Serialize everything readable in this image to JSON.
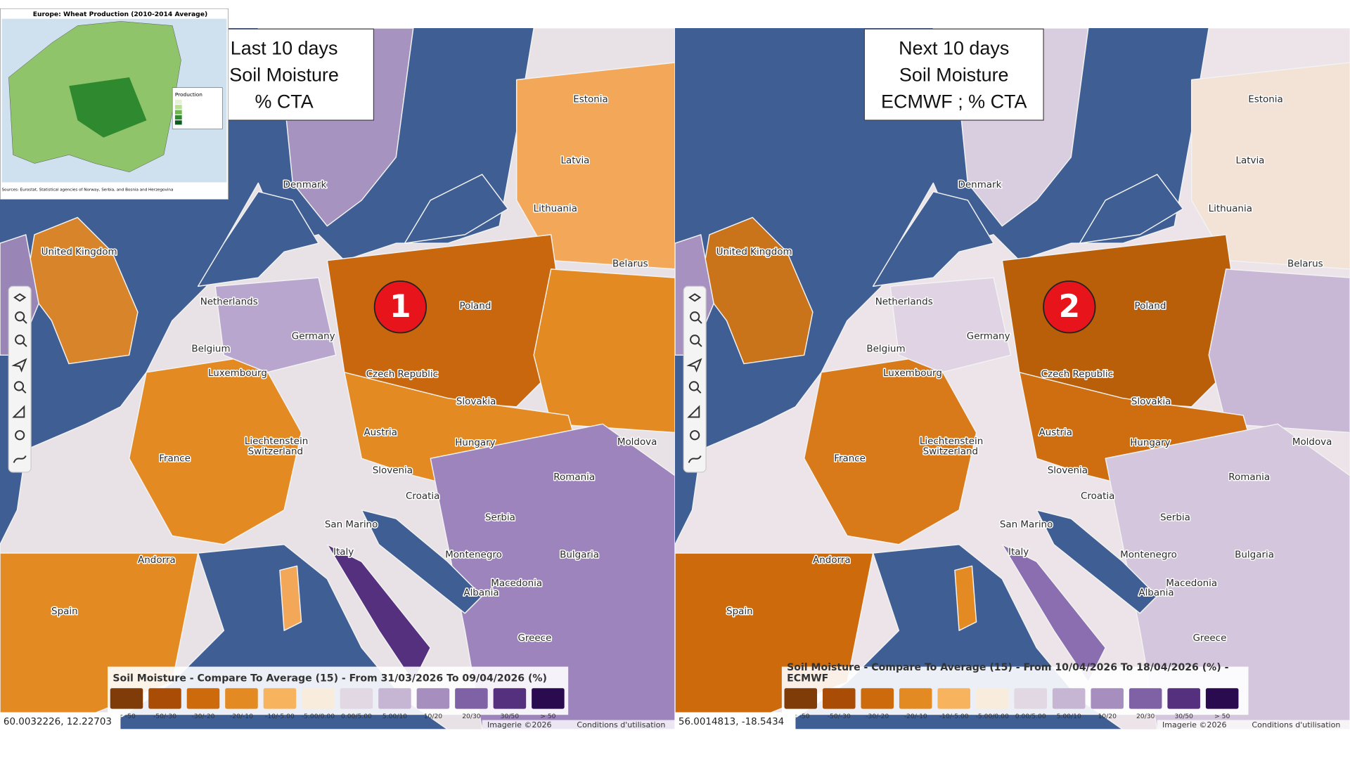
{
  "inset": {
    "title": "Europe: Wheat Production (2010-2014 Average)",
    "legend_title": "Production",
    "sources": "Sources: Eurostat, Statistical agencies of Norway, Serbia, and Bosnia and Herzegovina"
  },
  "countries": [
    "Estonia",
    "Latvia",
    "Denmark",
    "Lithuania",
    "United Kingdom",
    "Belarus",
    "Netherlands",
    "Poland",
    "Germany",
    "Belgium",
    "Luxembourg",
    "Czech Republic",
    "Slovakia",
    "Austria",
    "Liechtenstein",
    "Switzerland",
    "Moldova",
    "Hungary",
    "France",
    "Slovenia",
    "Romania",
    "Croatia",
    "Serbia",
    "San Marino",
    "Montenegro",
    "Bulgaria",
    "Italy",
    "Andorra",
    "Macedonia",
    "Albania",
    "Spain",
    "Greece"
  ],
  "legend_classes": [
    {
      "label": "< -50",
      "color": "#7f3b08"
    },
    {
      "label": "-50/-30",
      "color": "#a94d06"
    },
    {
      "label": "-30/-20",
      "color": "#cc6a0c"
    },
    {
      "label": "-20/-10",
      "color": "#e48a22"
    },
    {
      "label": "-10/-5.00",
      "color": "#f7b35e"
    },
    {
      "label": "-5.00/0.00",
      "color": "#f8ecdc"
    },
    {
      "label": "0.00/5.00",
      "color": "#e2d8e4"
    },
    {
      "label": "5.00/10",
      "color": "#c7b6d3"
    },
    {
      "label": "10/20",
      "color": "#a68fbf"
    },
    {
      "label": "20/30",
      "color": "#7f62a6"
    },
    {
      "label": "30/50",
      "color": "#54307f"
    },
    {
      "label": "> 50",
      "color": "#2b0b50"
    }
  ],
  "attribution": {
    "imagery": "Imagerie ©2026",
    "terms": "Conditions d'utilisation"
  },
  "panels": [
    {
      "overlay": [
        "Last 10 days",
        "Soil Moisture",
        "% CTA"
      ],
      "marker": "1",
      "legend_title": [
        "Soil Moisture - Compare To Average (15) - From 31/03/2026 To 09/04/2026 (%)"
      ],
      "coordinates": "60.0032226, 12.22703"
    },
    {
      "overlay": [
        "Next 10 days",
        "Soil Moisture",
        "ECMWF ; % CTA"
      ],
      "marker": "2",
      "legend_title": [
        "Soil Moisture - Compare To Average (15) - From 10/04/2026 To 18/04/2026 (%) -",
        "ECMWF"
      ],
      "coordinates": "56.0014813, -18.5434"
    }
  ]
}
